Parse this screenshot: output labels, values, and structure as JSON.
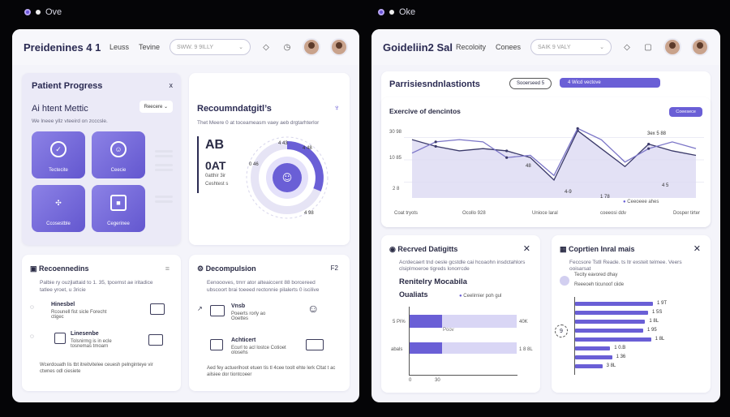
{
  "left_tab": {
    "title": "Ove"
  },
  "right_tab": {
    "title": "Oke"
  },
  "left_window": {
    "title": "Preidenines 4 1",
    "nav": [
      "Leuss",
      "Tevine"
    ],
    "search_placeholder": "SWW. 9 9ILLY",
    "patient_progress": {
      "title": "Patient Progress",
      "close": "x",
      "metric_title": "Ai htent Mettic",
      "dropdown": "Reecere",
      "subtitle": "We lneee yllz vteeird on zcccsle.",
      "tiles": [
        "Tectecite",
        "Ceecie",
        "Ccosestble",
        "Cegerinee"
      ]
    },
    "recommendations": {
      "title": "Recoumndatgitl’s",
      "subtitle": "Thet Meere 0 at toceameasm vaey aeb drgtarhterlor",
      "big1": "AB",
      "big2": "0AT",
      "small1": "0atthir 3ir",
      "small2": "Ceshtest s",
      "ring_labels": [
        "4 43",
        "4 48",
        "0 46",
        "4 98"
      ]
    },
    "recommendatns_card": {
      "title": "Recoennedins",
      "text": "Palbie ry ouzjlattaid to 1. 35, tpcemst ae iritadice tatlee yroet, u 3ricie",
      "rows": [
        {
          "title": "Hinesbel",
          "lines": "Rcounell fist sicle Forecht ctigec"
        },
        {
          "title": "Linesenbe",
          "lines": "Tolsnirmg is in ecle tosnemas tmoarn"
        }
      ],
      "footer": "Wcerdouath lis tbt itreitvitelee ceuesh pelnginteye vir ctwnes odl ciesiete"
    },
    "decomposition": {
      "title": "Decompulsion",
      "badge": "F2",
      "text": "Eenoooves, tmrr ator alteaiccent 88 borcereed ubscoort brai toeeed rectonnie pilalerts 0 iscilive",
      "rows": [
        {
          "title": "Vnsb",
          "lines": "Poeerts rorly ao Ooettes"
        },
        {
          "title": "Achticert",
          "lines": "Ecurl to acl lostce Cotioet olosehs"
        }
      ],
      "footer": "Aed fey actuerihoot etuen tis tl 4cee toolt ehte lerk Cltat t ac ailsiee dor tiontcoeer"
    }
  },
  "right_window": {
    "title": "Goideliin2 Sal",
    "nav": [
      "Recoloity",
      "Conees"
    ],
    "search_placeholder": "SAIK 9 VALY",
    "main_card": {
      "title": "Parrisiesndnlastionts",
      "btn1": "Sooerseed 5",
      "btn2": "4 Wicd vectove",
      "chart_title": "Exercive of dencintos",
      "chart_btn": "Coeesece",
      "legend_note": "Ceeoeee ahes",
      "ylabels": [
        "30 98",
        "10 85",
        "2 8"
      ],
      "xlabels": [
        "Coat tryots",
        "Ocollo 928",
        "Unioce laral",
        "coeeosi ddv",
        "Dosper tirter"
      ],
      "point_labels": [
        "48",
        "4-9",
        "1 78",
        "3ex 5 88",
        "4 5"
      ]
    },
    "chart_data": {
      "type": "line",
      "x": [
        0,
        1,
        2,
        3,
        4,
        5,
        6,
        7,
        8,
        9,
        10,
        11,
        12
      ],
      "series": [
        {
          "values": [
            26,
            23,
            21,
            22,
            21,
            18,
            8,
            30,
            22,
            14,
            24,
            21,
            19
          ]
        },
        {
          "values": [
            20,
            25,
            26,
            25,
            18,
            19,
            10,
            31,
            26,
            16,
            22,
            25,
            22
          ]
        }
      ]
    },
    "received": {
      "title": "Recrved Datigitts",
      "text": "Acrdecaert tnd oesle gcstdle cai hcoaohn insdctahlors clsiplmoeroe tigreds lonorrcde",
      "sub_title": "Renitelry Mocabila",
      "sub2": "Oualiats",
      "legend": "Ceelirnier poh gul",
      "bar_labels": [
        "5 Pi%",
        "abals"
      ],
      "right_labels": [
        "40K",
        "1 8 8L"
      ],
      "axis": [
        "0",
        "30"
      ],
      "mid_label": "Poov",
      "bars": [
        {
          "label": "5 Pi%",
          "value": 30
        },
        {
          "label": "abals",
          "value": 30
        }
      ]
    },
    "control": {
      "title": "Coprtien Inral mais",
      "text": "Feccsore Tstll Reade. ts ltr exsteit telmee. Veers ooisarsat",
      "row1": "Tecity eavored dhay",
      "row2": "Reeeoeh ticunoof ciide",
      "bar_labels": [
        "1 9T",
        "1 5S",
        "1 8L",
        "1 95",
        "1 8L",
        "1 0.B",
        "1 36",
        "3 8L"
      ],
      "bars": [
        0.8,
        0.75,
        0.72,
        0.7,
        0.78,
        0.36,
        0.38,
        0.28
      ],
      "side": "9"
    }
  }
}
